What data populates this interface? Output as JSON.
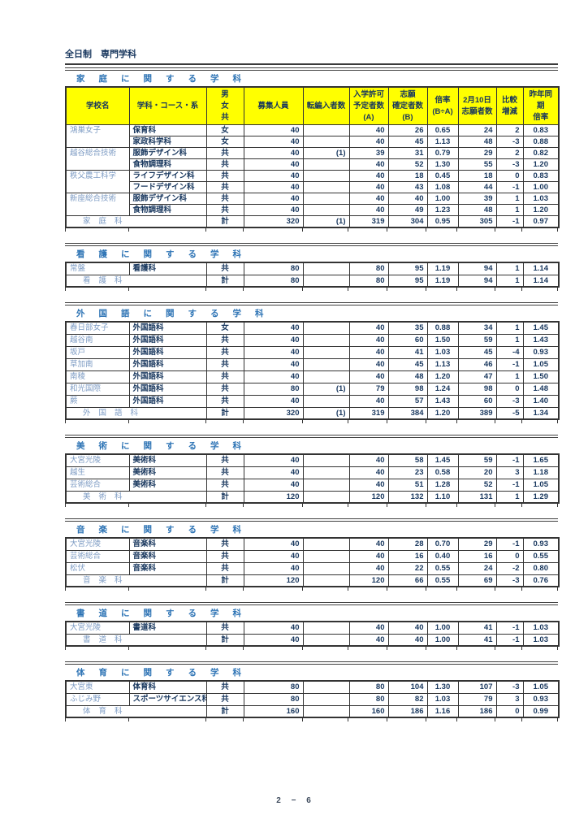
{
  "page": {
    "title": "全日制　専門学科",
    "page_number": "2 − 6"
  },
  "columns": {
    "school": "学校名",
    "course": "学科・コース・系",
    "gender": "男\n女\n共",
    "capacity": "募集人員",
    "transfer": "転編入者数",
    "admit": "入学許可\n予定者数\n(A)",
    "confirmed": "志願\n確定者数\n(B)",
    "ratio": "倍率\n(B÷A)",
    "feb10": "2月10日\n志願者数",
    "diff": "比較\n増減",
    "prev": "昨年同\n期\n倍率"
  },
  "sections": [
    {
      "title": "家庭に関する学科",
      "has_header": true,
      "rows": [
        [
          "鴻巣女子",
          "保育科",
          "女",
          "40",
          "",
          "40",
          "26",
          "0.65",
          "24",
          "2",
          "0.83"
        ],
        [
          null,
          "家政科学科",
          "女",
          "40",
          "",
          "40",
          "45",
          "1.13",
          "48",
          "-3",
          "0.88"
        ],
        [
          "越谷総合技術",
          "服飾デザイン科",
          "共",
          "40",
          "(1)",
          "39",
          "31",
          "0.79",
          "29",
          "2",
          "0.82"
        ],
        [
          null,
          "食物調理科",
          "共",
          "40",
          "",
          "40",
          "52",
          "1.30",
          "55",
          "-3",
          "1.20"
        ],
        [
          "秩父農工科学",
          "ライフデザイン科",
          "共",
          "40",
          "",
          "40",
          "18",
          "0.45",
          "18",
          "0",
          "0.83"
        ],
        [
          null,
          "フードデザイン科",
          "共",
          "40",
          "",
          "40",
          "43",
          "1.08",
          "44",
          "-1",
          "1.00"
        ],
        [
          "新座総合技術",
          "服飾デザイン科",
          "共",
          "40",
          "",
          "40",
          "40",
          "1.00",
          "39",
          "1",
          "1.03"
        ],
        [
          null,
          "食物調理科",
          "共",
          "40",
          "",
          "40",
          "49",
          "1.23",
          "48",
          "1",
          "1.20"
        ]
      ],
      "total": {
        "label": "家庭科",
        "values": [
          "計",
          "320",
          "(1)",
          "319",
          "304",
          "0.95",
          "305",
          "-1",
          "0.97"
        ]
      }
    },
    {
      "title": "看護に関する学科",
      "has_header": false,
      "rows": [
        [
          "常盤",
          "看護科",
          "共",
          "80",
          "",
          "80",
          "95",
          "1.19",
          "94",
          "1",
          "1.14"
        ]
      ],
      "total": {
        "label": "看護科",
        "values": [
          "計",
          "80",
          "",
          "80",
          "95",
          "1.19",
          "94",
          "1",
          "1.14"
        ]
      }
    },
    {
      "title": "外国語に関する学科",
      "has_header": false,
      "rows": [
        [
          "春日部女子",
          "外国語科",
          "女",
          "40",
          "",
          "40",
          "35",
          "0.88",
          "34",
          "1",
          "1.45"
        ],
        [
          "越谷南",
          "外国語科",
          "共",
          "40",
          "",
          "40",
          "60",
          "1.50",
          "59",
          "1",
          "1.43"
        ],
        [
          "坂戸",
          "外国語科",
          "共",
          "40",
          "",
          "40",
          "41",
          "1.03",
          "45",
          "-4",
          "0.93"
        ],
        [
          "草加南",
          "外国語科",
          "共",
          "40",
          "",
          "40",
          "45",
          "1.13",
          "46",
          "-1",
          "1.05"
        ],
        [
          "南稜",
          "外国語科",
          "共",
          "40",
          "",
          "40",
          "48",
          "1.20",
          "47",
          "1",
          "1.50"
        ],
        [
          "和光国際",
          "外国語科",
          "共",
          "80",
          "(1)",
          "79",
          "98",
          "1.24",
          "98",
          "0",
          "1.48"
        ],
        [
          "蕨",
          "外国語科",
          "共",
          "40",
          "",
          "40",
          "57",
          "1.43",
          "60",
          "-3",
          "1.40"
        ]
      ],
      "total": {
        "label": "外国語科",
        "values": [
          "計",
          "320",
          "(1)",
          "319",
          "384",
          "1.20",
          "389",
          "-5",
          "1.34"
        ]
      }
    },
    {
      "title": "美術に関する学科",
      "has_header": false,
      "rows": [
        [
          "大宮光陵",
          "美術科",
          "共",
          "40",
          "",
          "40",
          "58",
          "1.45",
          "59",
          "-1",
          "1.65"
        ],
        [
          "越生",
          "美術科",
          "共",
          "40",
          "",
          "40",
          "23",
          "0.58",
          "20",
          "3",
          "1.18"
        ],
        [
          "芸術総合",
          "美術科",
          "共",
          "40",
          "",
          "40",
          "51",
          "1.28",
          "52",
          "-1",
          "1.05"
        ]
      ],
      "total": {
        "label": "美術科",
        "values": [
          "計",
          "120",
          "",
          "120",
          "132",
          "1.10",
          "131",
          "1",
          "1.29"
        ]
      }
    },
    {
      "title": "音楽に関する学科",
      "has_header": false,
      "rows": [
        [
          "大宮光陵",
          "音楽科",
          "共",
          "40",
          "",
          "40",
          "28",
          "0.70",
          "29",
          "-1",
          "0.93"
        ],
        [
          "芸術総合",
          "音楽科",
          "共",
          "40",
          "",
          "40",
          "16",
          "0.40",
          "16",
          "0",
          "0.55"
        ],
        [
          "松伏",
          "音楽科",
          "共",
          "40",
          "",
          "40",
          "22",
          "0.55",
          "24",
          "-2",
          "0.80"
        ]
      ],
      "total": {
        "label": "音楽科",
        "values": [
          "計",
          "120",
          "",
          "120",
          "66",
          "0.55",
          "69",
          "-3",
          "0.76"
        ]
      }
    },
    {
      "title": "書道に関する学科",
      "has_header": false,
      "rows": [
        [
          "大宮光陵",
          "書道科",
          "共",
          "40",
          "",
          "40",
          "40",
          "1.00",
          "41",
          "-1",
          "1.03"
        ]
      ],
      "total": {
        "label": "書道科",
        "values": [
          "計",
          "40",
          "",
          "40",
          "40",
          "1.00",
          "41",
          "-1",
          "1.03"
        ]
      }
    },
    {
      "title": "体育に関する学科",
      "has_header": false,
      "rows": [
        [
          "大宮東",
          "体育科",
          "共",
          "80",
          "",
          "80",
          "104",
          "1.30",
          "107",
          "-3",
          "1.05"
        ],
        [
          "ふじみ野",
          "スポーツサイエンス科",
          "共",
          "80",
          "",
          "80",
          "82",
          "1.03",
          "79",
          "3",
          "0.93"
        ]
      ],
      "total": {
        "label": "体育科",
        "values": [
          "計",
          "160",
          "",
          "160",
          "186",
          "1.16",
          "186",
          "0",
          "0.99"
        ]
      }
    }
  ]
}
